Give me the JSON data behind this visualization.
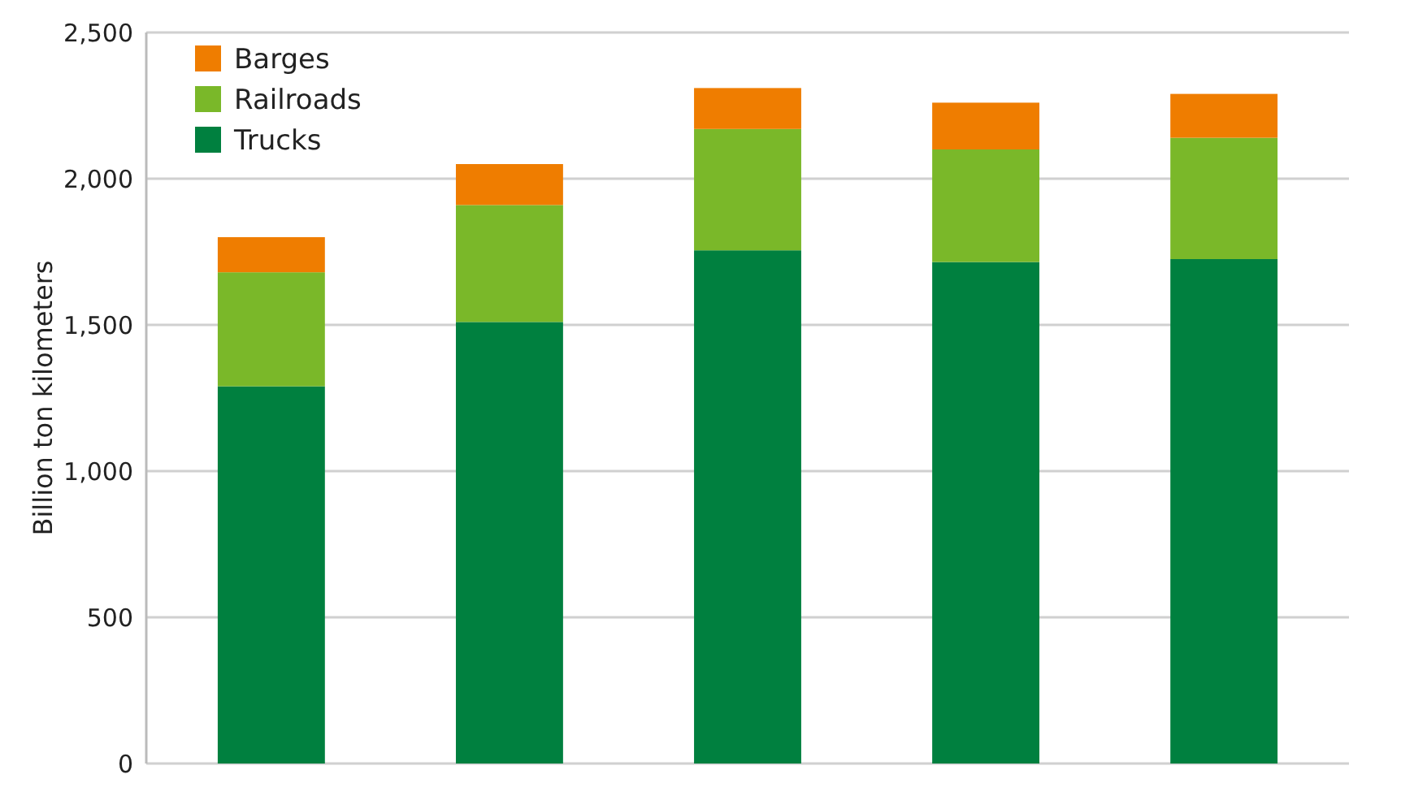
{
  "chart_data": {
    "type": "bar",
    "stacked": true,
    "ylabel": "Billion ton kilometers",
    "categories": [
      null,
      null,
      null,
      null,
      null
    ],
    "series": [
      {
        "name": "Trucks",
        "color": "#00803f",
        "values": [
          1290,
          1510,
          1755,
          1715,
          1725
        ]
      },
      {
        "name": "Railroads",
        "color": "#7ab829",
        "values": [
          390,
          400,
          415,
          385,
          415
        ]
      },
      {
        "name": "Barges",
        "color": "#ef7d00",
        "values": [
          120,
          140,
          140,
          160,
          150
        ]
      }
    ],
    "ylim": [
      0,
      2500
    ],
    "yticks": [
      {
        "value": 0,
        "label": "0"
      },
      {
        "value": 500,
        "label": "500"
      },
      {
        "value": 1000,
        "label": "1,000"
      },
      {
        "value": 1500,
        "label": "1,500"
      },
      {
        "value": 2000,
        "label": "2,000"
      },
      {
        "value": 2500,
        "label": "2,500"
      }
    ],
    "grid": "y",
    "legend": "top left"
  }
}
